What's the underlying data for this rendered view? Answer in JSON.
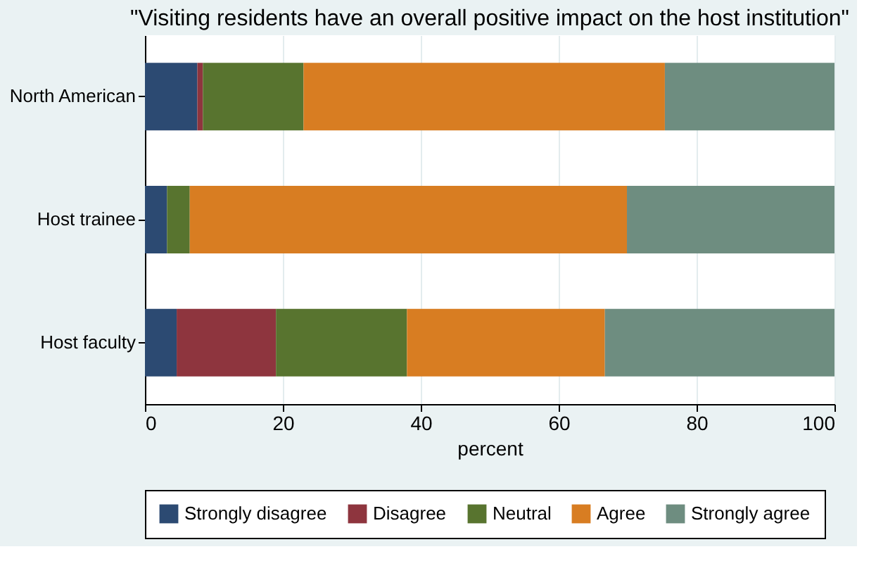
{
  "chart_data": {
    "type": "bar",
    "orientation": "horizontal",
    "stacked": true,
    "title": "\"Visiting residents have an overall positive impact on the host institution\"",
    "categories": [
      "North American",
      "Host trainee",
      "Host faculty"
    ],
    "series": [
      {
        "name": "Strongly disagree",
        "color": "#2c4a72",
        "values": [
          7.6,
          3.2,
          4.6
        ]
      },
      {
        "name": "Disagree",
        "color": "#8e353e",
        "values": [
          0.8,
          0,
          14.4
        ]
      },
      {
        "name": "Neutral",
        "color": "#58742f",
        "values": [
          14.6,
          3.3,
          19.0
        ]
      },
      {
        "name": "Agree",
        "color": "#d87d22",
        "values": [
          52.4,
          63.4,
          28.7
        ]
      },
      {
        "name": "Strongly agree",
        "color": "#6e8d80",
        "values": [
          24.6,
          30.1,
          33.3
        ]
      }
    ],
    "xlabel": "percent",
    "xlim": [
      0,
      100
    ],
    "xticks": [
      0,
      20,
      40,
      60,
      80,
      100
    ],
    "grid": "x",
    "legend": "bottom"
  }
}
